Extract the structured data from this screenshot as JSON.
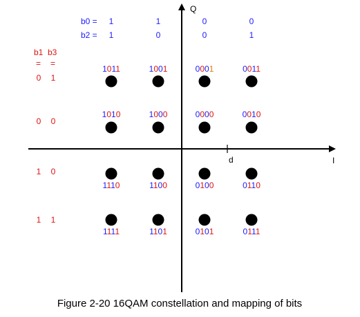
{
  "colors": {
    "blue": "#1a1aff",
    "red": "#dd1111",
    "orange": "#e07a00",
    "axis": "#000000",
    "point": "#000000"
  },
  "axes": {
    "x_label": "I",
    "y_label": "Q",
    "tick_label": "d"
  },
  "header": {
    "b0": {
      "label": "b0 =",
      "values": [
        "1",
        "1",
        "0",
        "0"
      ]
    },
    "b2": {
      "label": "b2 =",
      "values": [
        "1",
        "0",
        "0",
        "1"
      ]
    }
  },
  "side_header": {
    "b1": "b1",
    "b3": "b3",
    "eq": "="
  },
  "rows": [
    {
      "b1": "0",
      "b3": "1"
    },
    {
      "b1": "0",
      "b3": "0"
    },
    {
      "b1": "1",
      "b3": "0"
    },
    {
      "b1": "1",
      "b3": "1"
    }
  ],
  "chart_data": {
    "type": "scatter",
    "title": "",
    "xlabel": "I",
    "ylabel": "Q",
    "points": [
      {
        "x": -3,
        "y": 3,
        "bits": [
          "1",
          "0",
          "1",
          "1"
        ],
        "colors": [
          "blue",
          "red",
          "blue",
          "red"
        ]
      },
      {
        "x": -1,
        "y": 3,
        "bits": [
          "1",
          "0",
          "0",
          "1"
        ],
        "colors": [
          "blue",
          "red",
          "blue",
          "red"
        ]
      },
      {
        "x": 1,
        "y": 3,
        "bits": [
          "0",
          "0",
          "0",
          "1"
        ],
        "colors": [
          "blue",
          "red",
          "blue",
          "orange"
        ]
      },
      {
        "x": 3,
        "y": 3,
        "bits": [
          "0",
          "0",
          "1",
          "1"
        ],
        "colors": [
          "blue",
          "red",
          "blue",
          "red"
        ]
      },
      {
        "x": -3,
        "y": 1,
        "bits": [
          "1",
          "0",
          "1",
          "0"
        ],
        "colors": [
          "blue",
          "red",
          "blue",
          "red"
        ]
      },
      {
        "x": -1,
        "y": 1,
        "bits": [
          "1",
          "0",
          "0",
          "0"
        ],
        "colors": [
          "blue",
          "red",
          "blue",
          "red"
        ]
      },
      {
        "x": 1,
        "y": 1,
        "bits": [
          "0",
          "0",
          "0",
          "0"
        ],
        "colors": [
          "blue",
          "red",
          "blue",
          "red"
        ]
      },
      {
        "x": 3,
        "y": 1,
        "bits": [
          "0",
          "0",
          "1",
          "0"
        ],
        "colors": [
          "blue",
          "red",
          "blue",
          "red"
        ]
      },
      {
        "x": -3,
        "y": -1,
        "bits": [
          "1",
          "1",
          "1",
          "0"
        ],
        "colors": [
          "blue",
          "red",
          "blue",
          "red"
        ]
      },
      {
        "x": -1,
        "y": -1,
        "bits": [
          "1",
          "1",
          "0",
          "0"
        ],
        "colors": [
          "blue",
          "red",
          "blue",
          "red"
        ]
      },
      {
        "x": 1,
        "y": -1,
        "bits": [
          "0",
          "1",
          "0",
          "0"
        ],
        "colors": [
          "blue",
          "red",
          "blue",
          "red"
        ]
      },
      {
        "x": 3,
        "y": -1,
        "bits": [
          "0",
          "1",
          "1",
          "0"
        ],
        "colors": [
          "blue",
          "red",
          "blue",
          "red"
        ]
      },
      {
        "x": -3,
        "y": -3,
        "bits": [
          "1",
          "1",
          "1",
          "1"
        ],
        "colors": [
          "blue",
          "red",
          "blue",
          "red"
        ]
      },
      {
        "x": -1,
        "y": -3,
        "bits": [
          "1",
          "1",
          "0",
          "1"
        ],
        "colors": [
          "blue",
          "red",
          "blue",
          "red"
        ]
      },
      {
        "x": 1,
        "y": -3,
        "bits": [
          "0",
          "1",
          "0",
          "1"
        ],
        "colors": [
          "blue",
          "red",
          "blue",
          "red"
        ]
      },
      {
        "x": 3,
        "y": -3,
        "bits": [
          "0",
          "1",
          "1",
          "1"
        ],
        "colors": [
          "blue",
          "red",
          "blue",
          "red"
        ]
      }
    ]
  },
  "caption": "Figure 2-20 16QAM constellation and mapping of bits"
}
